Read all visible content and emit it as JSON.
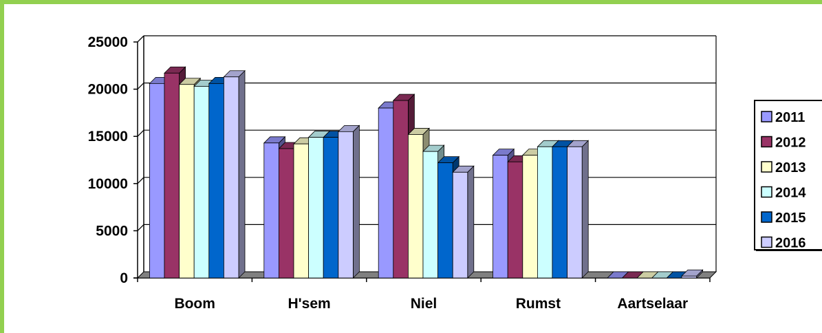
{
  "chart_data": {
    "type": "bar",
    "title": "",
    "xlabel": "",
    "ylabel": "",
    "ylim": [
      0,
      25000
    ],
    "y_ticks": [
      "0",
      "5000",
      "10000",
      "15000",
      "20000",
      "25000"
    ],
    "grid": true,
    "legend_position": "right",
    "categories": [
      "Boom",
      "H'sem",
      "Niel",
      "Rumst",
      "Aartselaar"
    ],
    "series": [
      {
        "name": "2011",
        "color": "#9999ff",
        "values": [
          20600,
          14300,
          18000,
          13000,
          0
        ]
      },
      {
        "name": "2012",
        "color": "#993366",
        "values": [
          21700,
          13700,
          18800,
          12300,
          0
        ]
      },
      {
        "name": "2013",
        "color": "#ffffcc",
        "values": [
          20500,
          14200,
          15200,
          13000,
          0
        ]
      },
      {
        "name": "2014",
        "color": "#ccffff",
        "values": [
          20300,
          14900,
          13400,
          13900,
          0
        ]
      },
      {
        "name": "2015",
        "color": "#0066cc",
        "values": [
          20600,
          14900,
          12200,
          13900,
          0
        ]
      },
      {
        "name": "2016",
        "color": "#ccccff",
        "values": [
          21300,
          15500,
          11200,
          13900,
          200
        ]
      }
    ]
  },
  "colors": {
    "frame": "#92d050",
    "gridline": "#000000"
  }
}
